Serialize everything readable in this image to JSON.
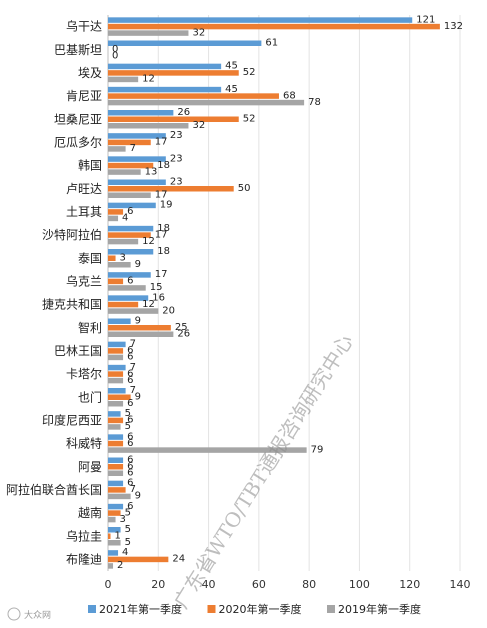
{
  "chart_data": {
    "type": "bar",
    "orientation": "horizontal",
    "categories": [
      "乌干达",
      "巴基斯坦",
      "埃及",
      "肯尼亚",
      "坦桑尼亚",
      "厄瓜多尔",
      "韩国",
      "卢旺达",
      "土耳其",
      "沙特阿拉伯",
      "泰国",
      "乌克兰",
      "捷克共和国",
      "智利",
      "巴林王国",
      "卡塔尔",
      "也门",
      "印度尼西亚",
      "科威特",
      "阿曼",
      "阿拉伯联合酋长国",
      "越南",
      "乌拉圭",
      "布隆迪"
    ],
    "series": [
      {
        "name": "2021年第一季度",
        "color": "#5b9bd5",
        "values": [
          121,
          61,
          45,
          45,
          26,
          23,
          23,
          23,
          19,
          18,
          18,
          17,
          16,
          9,
          7,
          7,
          7,
          5,
          6,
          6,
          6,
          6,
          5,
          4
        ]
      },
      {
        "name": "2020年第一季度",
        "color": "#ed7d31",
        "values": [
          132,
          0,
          52,
          68,
          52,
          17,
          18,
          50,
          6,
          17,
          3,
          6,
          12,
          25,
          6,
          6,
          9,
          6,
          6,
          6,
          7,
          5,
          1,
          24
        ]
      },
      {
        "name": "2019年第一季度",
        "color": "#a5a5a5",
        "values": [
          32,
          0,
          12,
          78,
          32,
          7,
          13,
          17,
          4,
          12,
          9,
          15,
          20,
          26,
          6,
          6,
          6,
          5,
          79,
          6,
          9,
          3,
          5,
          2
        ]
      }
    ],
    "xlim": [
      0,
      140
    ],
    "xticks": [
      "0",
      "20",
      "40",
      "60",
      "80",
      "100",
      "120",
      "140"
    ],
    "grid": true,
    "legend_position": "bottom"
  },
  "watermark": "广东省WTO/TBT通报咨询研究中心",
  "logo_text": "大众网"
}
